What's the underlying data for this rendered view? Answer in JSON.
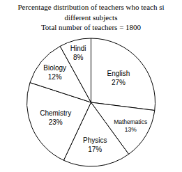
{
  "chart_data": {
    "type": "pie",
    "title": "Percentage distribution of teachers who teach si",
    "subtitle": [
      "different subjects",
      "Total number of teachers = 1800"
    ],
    "categories": [
      "English",
      "Mathematics",
      "Physics",
      "Chemistry",
      "Biology",
      "Hindi"
    ],
    "values": [
      27,
      13,
      17,
      23,
      12,
      8
    ],
    "value_labels": [
      "27%",
      "13%",
      "17%",
      "23%",
      "12%",
      "8%"
    ],
    "color": "#ffffff",
    "data_labels": true
  }
}
